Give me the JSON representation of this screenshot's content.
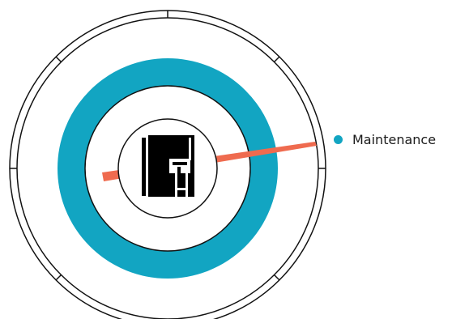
{
  "legend": {
    "items": [
      {
        "label": "Maintenance",
        "color": "#12a5c2"
      }
    ]
  },
  "colors": {
    "ring": "#12a5c2",
    "pointer": "#ef6b4f",
    "stroke": "#111111",
    "center_icon": "#000000"
  },
  "icons": {
    "center": "building-icon"
  }
}
